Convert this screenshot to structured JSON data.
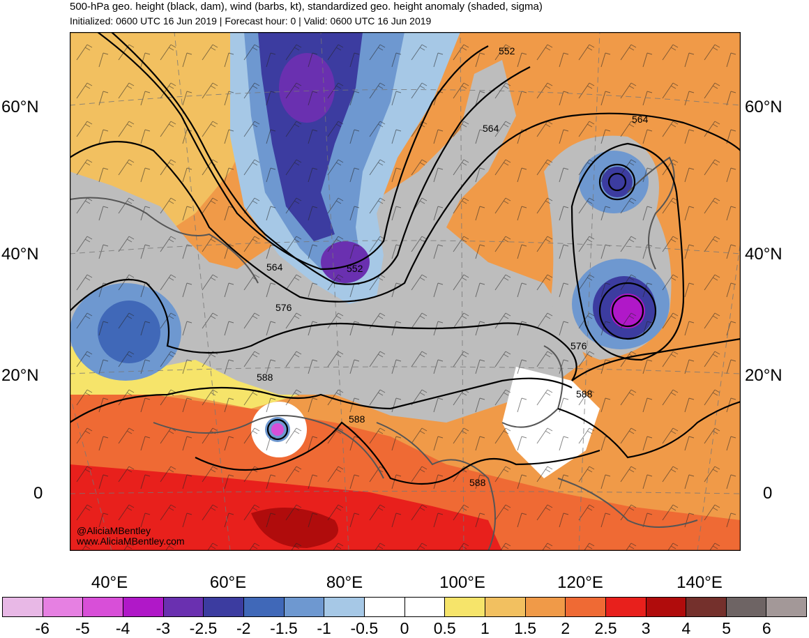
{
  "header": {
    "title": "500-hPa geo. height (black, dam), wind (barbs, kt), standardized geo. height anomaly (shaded, sigma)",
    "subtitle": "Initialized: 0600 UTC 16 Jun 2019 | Forecast hour: 0 | Valid: 0600 UTC 16 Jun 2019"
  },
  "map": {
    "lat_labels": [
      "60°N",
      "40°N",
      "20°N",
      "0"
    ],
    "lon_labels": [
      "40°E",
      "60°E",
      "80°E",
      "100°E",
      "120°E",
      "140°E"
    ],
    "contour_labels": [
      "552",
      "564",
      "564",
      "564",
      "552",
      "576",
      "576",
      "588",
      "588",
      "588",
      "588"
    ],
    "credit_handle": "@AliciaMBentley",
    "credit_site": "www.AliciaMBentley.com"
  },
  "colorbar": {
    "labels": [
      "-6",
      "-5",
      "-4",
      "-3",
      "-2.5",
      "-2",
      "-1.5",
      "-1",
      "-0.5",
      "0",
      "0.5",
      "1",
      "1.5",
      "2",
      "2.5",
      "3",
      "4",
      "5",
      "6"
    ],
    "colors": [
      "#e8b8e6",
      "#e680e2",
      "#d84fd8",
      "#b018c8",
      "#6a30b0",
      "#3c3ca0",
      "#4068b8",
      "#6e98d0",
      "#a6c8e6",
      "#ffffff",
      "#ffffff",
      "#f6e46a",
      "#f2c060",
      "#f09a48",
      "#ef6a34",
      "#e8201c",
      "#b00c0c",
      "#74302c",
      "#6e6464",
      "#a39898"
    ]
  }
}
